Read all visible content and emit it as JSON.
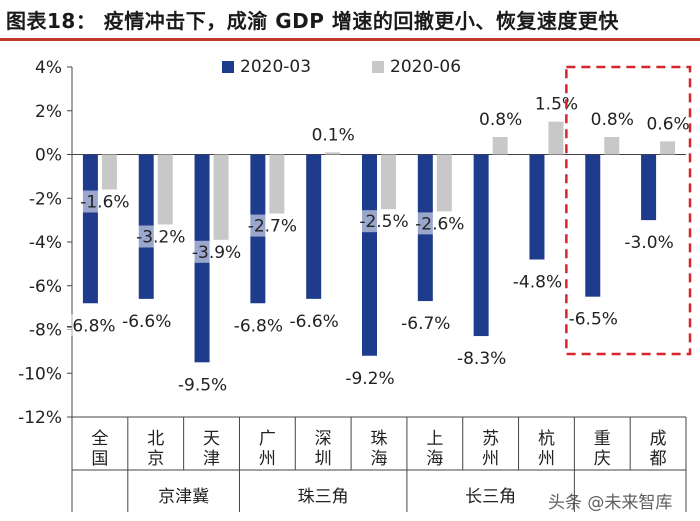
{
  "title": "图表18：   疫情冲击下，成渝 GDP 增速的回撤更小、恢复速度更快",
  "watermark": "头条 @未来智库",
  "chart_data": {
    "type": "bar",
    "title": "图表18：   疫情冲击下，成渝 GDP 增速的回撤更小、恢复速度更快",
    "ylabel": "",
    "xlabel": "",
    "ylim": [
      -12,
      4
    ],
    "yticks": [
      4,
      2,
      0,
      -2,
      -4,
      -6,
      -8,
      -10,
      -12
    ],
    "ytick_labels": [
      "4%",
      "2%",
      "0%",
      "-2%",
      "-4%",
      "-6%",
      "-8%",
      "-10%",
      "-12%"
    ],
    "categories": [
      "全国",
      "北京",
      "天津",
      "广州",
      "深圳",
      "珠海",
      "上海",
      "苏州",
      "杭州",
      "重庆",
      "成都"
    ],
    "category_chars": [
      [
        "全",
        "国"
      ],
      [
        "北",
        "京"
      ],
      [
        "天",
        "津"
      ],
      [
        "广",
        "州"
      ],
      [
        "深",
        "圳"
      ],
      [
        "珠",
        "海"
      ],
      [
        "上",
        "海"
      ],
      [
        "苏",
        "州"
      ],
      [
        "杭",
        "州"
      ],
      [
        "重",
        "庆"
      ],
      [
        "成",
        "都"
      ]
    ],
    "groups": [
      {
        "label": "京津冀",
        "start": 1,
        "end": 2
      },
      {
        "label": "珠三角",
        "start": 3,
        "end": 5
      },
      {
        "label": "长三角",
        "start": 6,
        "end": 8
      }
    ],
    "separators_after": [
      0,
      2,
      5,
      8
    ],
    "series": [
      {
        "name": "2020-03",
        "color": "#1f3b8c",
        "values": [
          -6.8,
          -6.6,
          -9.5,
          -6.8,
          -6.6,
          -9.2,
          -6.7,
          -8.3,
          -4.8,
          -6.5,
          -3.0
        ],
        "labels": [
          "-6.8%",
          "-6.6%",
          "-9.5%",
          "-6.8%",
          "-6.6%",
          "-9.2%",
          "-6.7%",
          "-8.3%",
          "-4.8%",
          "-6.5%",
          "-3.0%"
        ]
      },
      {
        "name": "2020-06",
        "color": "#c8c8c8",
        "values": [
          -1.6,
          -3.2,
          -3.9,
          -2.7,
          0.1,
          -2.5,
          -2.6,
          0.8,
          1.5,
          0.8,
          0.6
        ],
        "labels": [
          "-1.6%",
          "-3.2%",
          "-3.9%",
          "-2.7%",
          "0.1%",
          "-2.5%",
          "-2.6%",
          "0.8%",
          "1.5%",
          "0.8%",
          "0.6%"
        ]
      }
    ],
    "legend_position": "top",
    "highlight": {
      "start": 9,
      "end": 10,
      "style": "red-dashed-box"
    }
  }
}
